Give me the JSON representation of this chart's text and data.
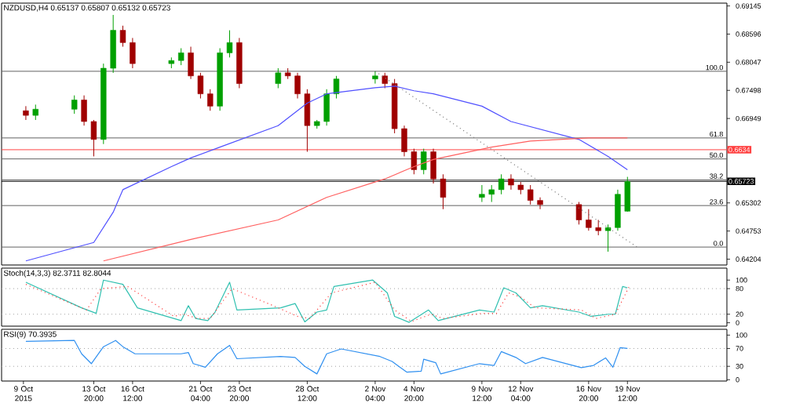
{
  "chart_data": [
    {
      "type": "candlestick",
      "title": "NZDUSD,H4 0.65137 0.65807 0.65132 0.65723",
      "tick_labels": "y",
      "xlim": [
        "2015-10-07T12:00",
        "2015-11-26T08:00"
      ],
      "ylim": [
        0.6409,
        0.692
      ],
      "yticks": [
        0.69145,
        0.68596,
        0.68047,
        0.67498,
        0.66949,
        0.65302,
        0.64753,
        0.64204
      ],
      "x": [
        "2015-10-09T04:00",
        "2015-10-09T20:00",
        "2015-10-12T12:00",
        "2015-10-13T04:00",
        "2015-10-13T20:00",
        "2015-10-14T12:00",
        "2015-10-15T04:00",
        "2015-10-15T20:00",
        "2015-10-16T12:00",
        "2015-10-19T04:00",
        "2015-10-19T20:00",
        "2015-10-20T12:00",
        "2015-10-21T04:00",
        "2015-10-21T20:00",
        "2015-10-22T12:00",
        "2015-10-23T04:00",
        "2015-10-23T20:00",
        "2015-10-26T12:00",
        "2015-10-27T04:00",
        "2015-10-27T20:00",
        "2015-10-28T12:00",
        "2015-10-29T04:00",
        "2015-10-29T20:00",
        "2015-10-30T12:00",
        "2015-11-02T04:00",
        "2015-11-02T20:00",
        "2015-11-03T12:00",
        "2015-11-04T04:00",
        "2015-11-04T20:00",
        "2015-11-05T12:00",
        "2015-11-06T04:00",
        "2015-11-06T20:00",
        "2015-11-09T12:00",
        "2015-11-10T04:00",
        "2015-11-10T20:00",
        "2015-11-11T12:00",
        "2015-11-12T04:00",
        "2015-11-12T20:00",
        "2015-11-13T12:00",
        "2015-11-16T04:00",
        "2015-11-16T20:00",
        "2015-11-17T12:00",
        "2015-11-18T04:00",
        "2015-11-18T20:00",
        "2015-11-19T12:00"
      ],
      "ohlc": [
        [
          0.671,
          0.6719,
          0.6692,
          0.6701
        ],
        [
          0.6701,
          0.6722,
          0.6692,
          0.6713
        ],
        [
          0.6713,
          0.674,
          0.6704,
          0.6731
        ],
        [
          0.6731,
          0.674,
          0.6681,
          0.6689
        ],
        [
          0.6689,
          0.6692,
          0.6621,
          0.6654
        ],
        [
          0.6654,
          0.6802,
          0.6645,
          0.6793
        ],
        [
          0.6793,
          0.6897,
          0.6784,
          0.6867
        ],
        [
          0.6867,
          0.6876,
          0.6835,
          0.6843
        ],
        [
          0.6843,
          0.6852,
          0.6793,
          0.6802
        ],
        [
          0.6802,
          0.6814,
          0.6793,
          0.6808
        ],
        [
          0.6808,
          0.6832,
          0.6799,
          0.6823
        ],
        [
          0.6823,
          0.6835,
          0.6772,
          0.6778
        ],
        [
          0.6778,
          0.6784,
          0.6734,
          0.6743
        ],
        [
          0.6743,
          0.6752,
          0.671,
          0.6719
        ],
        [
          0.6719,
          0.6832,
          0.671,
          0.6823
        ],
        [
          0.6823,
          0.6867,
          0.6814,
          0.6843
        ],
        [
          0.6843,
          0.6852,
          0.6754,
          0.6763
        ],
        [
          0.6763,
          0.6793,
          0.6754,
          0.6784
        ],
        [
          0.6784,
          0.6793,
          0.6772,
          0.6778
        ],
        [
          0.6778,
          0.6784,
          0.6734,
          0.6743
        ],
        [
          0.6743,
          0.6752,
          0.663,
          0.6681
        ],
        [
          0.6681,
          0.6692,
          0.6675,
          0.6689
        ],
        [
          0.6689,
          0.6752,
          0.6681,
          0.6743
        ],
        [
          0.6743,
          0.6778,
          0.6734,
          0.6772
        ],
        [
          0.6772,
          0.6787,
          0.6763,
          0.6778
        ],
        [
          0.6778,
          0.6784,
          0.6754,
          0.6763
        ],
        [
          0.6763,
          0.6772,
          0.6666,
          0.6675
        ],
        [
          0.6675,
          0.6681,
          0.6621,
          0.663
        ],
        [
          0.663,
          0.6636,
          0.6586,
          0.6595
        ],
        [
          0.6595,
          0.6636,
          0.6586,
          0.663
        ],
        [
          0.663,
          0.6636,
          0.6568,
          0.6577
        ],
        [
          0.6577,
          0.6586,
          0.6518,
          0.6541
        ],
        [
          0.6541,
          0.6565,
          0.6532,
          0.6547
        ],
        [
          0.6547,
          0.6565,
          0.6532,
          0.6556
        ],
        [
          0.6556,
          0.6586,
          0.6547,
          0.6577
        ],
        [
          0.6577,
          0.6586,
          0.6556,
          0.6565
        ],
        [
          0.6565,
          0.6571,
          0.6547,
          0.6556
        ],
        [
          0.6556,
          0.6565,
          0.6527,
          0.6535
        ],
        [
          0.6535,
          0.6541,
          0.6518,
          0.6527
        ],
        [
          0.6527,
          0.6532,
          0.6488,
          0.6497
        ],
        [
          0.6497,
          0.6518,
          0.6476,
          0.6482
        ],
        [
          0.6482,
          0.6497,
          0.6467,
          0.6476
        ],
        [
          0.6476,
          0.6488,
          0.6435,
          0.6482
        ],
        [
          0.6482,
          0.6556,
          0.6476,
          0.6547
        ],
        [
          0.6514,
          0.6581,
          0.6513,
          0.6572
        ]
      ],
      "colors": [
        "#a00000",
        "#00a000",
        "#00a000",
        "#a00000",
        "#a00000",
        "#00a000",
        "#00a000",
        "#a00000",
        "#a00000",
        "#00a000",
        "#00a000",
        "#a00000",
        "#a00000",
        "#a00000",
        "#00a000",
        "#00a000",
        "#a00000",
        "#00a000",
        "#a00000",
        "#a00000",
        "#a00000",
        "#00a000",
        "#00a000",
        "#00a000",
        "#00a000",
        "#a00000",
        "#a00000",
        "#a00000",
        "#a00000",
        "#00a000",
        "#a00000",
        "#a00000",
        "#00a000",
        "#00a000",
        "#00a000",
        "#a00000",
        "#a00000",
        "#a00000",
        "#a00000",
        "#a00000",
        "#a00000",
        "#a00000",
        "#00a000",
        "#00a000",
        "#00a000"
      ],
      "series": [
        {
          "type": "line",
          "color": "#5050ff",
          "x": [
            "2015-10-09T04:00",
            "2015-10-13T20:00",
            "2015-10-15T04:00",
            "2015-10-15T20:00",
            "2015-10-19T04:00",
            "2015-10-20T12:00",
            "2015-10-22T12:00",
            "2015-10-26T12:00",
            "2015-10-28T12:00",
            "2015-10-29T20:00",
            "2015-11-02T04:00",
            "2015-11-03T12:00",
            "2015-11-04T20:00",
            "2015-11-06T04:00",
            "2015-11-09T12:00",
            "2015-11-11T12:00",
            "2015-11-16T04:00",
            "2015-11-18T04:00",
            "2015-11-19T12:00"
          ],
          "values": [
            0.6417,
            0.6453,
            0.6512,
            0.6556,
            0.6601,
            0.6618,
            0.6639,
            0.6681,
            0.6725,
            0.6743,
            0.6755,
            0.6758,
            0.6749,
            0.6743,
            0.6719,
            0.6689,
            0.6654,
            0.6621,
            0.6595
          ]
        },
        {
          "type": "line",
          "color": "#ff6060",
          "x": [
            "2015-10-14T12:00",
            "2015-10-20T12:00",
            "2015-10-26T12:00",
            "2015-10-29T20:00",
            "2015-11-02T20:00",
            "2015-11-04T20:00",
            "2015-11-06T04:00",
            "2015-11-10T04:00",
            "2015-11-12T20:00",
            "2015-11-16T20:00",
            "2015-11-19T12:00"
          ],
          "values": [
            0.6417,
            0.6459,
            0.6497,
            0.6541,
            0.6577,
            0.6601,
            0.6615,
            0.6639,
            0.6651,
            0.6657,
            0.6657
          ]
        },
        {
          "type": "line",
          "color": "#808080",
          "line_style": "dotted",
          "x": [
            "2015-11-02T04:00",
            "2015-11-20T04:00"
          ],
          "values": [
            0.6787,
            0.6444
          ]
        }
      ],
      "ref_lines": [
        {
          "axis": "y",
          "value": 0.6787,
          "color": "#606060"
        },
        {
          "axis": "y",
          "value": 0.6657,
          "color": "#606060"
        },
        {
          "axis": "y",
          "value": 0.6616,
          "color": "#606060"
        },
        {
          "axis": "y",
          "value": 0.6575,
          "color": "#606060"
        },
        {
          "axis": "y",
          "value": 0.6525,
          "color": "#606060"
        },
        {
          "axis": "y",
          "value": 0.6444,
          "color": "#606060"
        },
        {
          "axis": "y",
          "value": 0.6634,
          "color": "#ff4040",
          "label": "0.6634"
        },
        {
          "axis": "y",
          "value": 0.65723,
          "color": "#000000",
          "label": "0.65723"
        }
      ],
      "annotations": [
        {
          "text": "100.0",
          "x": "2015-11-26T04:00",
          "y": 0.6787
        },
        {
          "text": "61.8",
          "x": "2015-11-26T04:00",
          "y": 0.6657
        },
        {
          "text": "50.0",
          "x": "2015-11-26T04:00",
          "y": 0.6616
        },
        {
          "text": "38.2",
          "x": "2015-11-26T04:00",
          "y": 0.6575
        },
        {
          "text": "23.6",
          "x": "2015-11-26T04:00",
          "y": 0.6525
        },
        {
          "text": "0.0",
          "x": "2015-11-26T04:00",
          "y": 0.6444
        }
      ]
    },
    {
      "type": "line",
      "title": "Stoch(14,3,3) 82.3711 82.8044",
      "tick_labels": "y",
      "xlim": [
        "2015-10-07T12:00",
        "2015-11-26T08:00"
      ],
      "ylim": [
        -8,
        128
      ],
      "yticks": [
        0,
        20,
        80,
        100
      ],
      "ref_lines": [
        {
          "axis": "y",
          "value": 20,
          "color": "#a0a0a0",
          "line_style": "dotted"
        },
        {
          "axis": "y",
          "value": 80,
          "color": "#a0a0a0",
          "line_style": "dotted"
        }
      ],
      "series": [
        {
          "color": "#30c0b0",
          "x": [
            "2015-10-09T04:00",
            "2015-10-13T00:00",
            "2015-10-14T00:00",
            "2015-10-14T12:00",
            "2015-10-15T20:00",
            "2015-10-16T20:00",
            "2015-10-19T20:00",
            "2015-10-20T08:00",
            "2015-10-20T20:00",
            "2015-10-21T16:00",
            "2015-10-22T04:00",
            "2015-10-23T04:00",
            "2015-10-23T16:00",
            "2015-10-26T16:00",
            "2015-10-27T16:00",
            "2015-10-28T08:00",
            "2015-10-29T04:00",
            "2015-10-29T20:00",
            "2015-10-30T08:00",
            "2015-11-02T00:00",
            "2015-11-03T00:00",
            "2015-11-03T12:00",
            "2015-11-04T12:00",
            "2015-11-05T20:00",
            "2015-11-06T12:00",
            "2015-11-09T08:00",
            "2015-11-10T08:00",
            "2015-11-11T00:00",
            "2015-11-11T20:00",
            "2015-11-12T20:00",
            "2015-11-13T16:00",
            "2015-11-16T04:00",
            "2015-11-17T00:00",
            "2015-11-18T04:00",
            "2015-11-18T16:00",
            "2015-11-19T04:00",
            "2015-11-19T12:00"
          ],
          "values": [
            95,
            35,
            22,
            100,
            90,
            35,
            5,
            40,
            10,
            5,
            25,
            95,
            30,
            35,
            45,
            2,
            25,
            30,
            85,
            100,
            70,
            15,
            1,
            30,
            5,
            30,
            25,
            82,
            70,
            35,
            40,
            25,
            15,
            20,
            20,
            85,
            82
          ]
        },
        {
          "color": "#ff4040",
          "line_style": "dotted",
          "x": [
            "2015-10-09T04:00",
            "2015-10-13T08:00",
            "2015-10-14T08:00",
            "2015-10-16T04:00",
            "2015-10-19T08:00",
            "2015-10-20T00:00",
            "2015-10-21T00:00",
            "2015-10-21T20:00",
            "2015-10-23T08:00",
            "2015-10-26T04:00",
            "2015-10-27T20:00",
            "2015-10-28T16:00",
            "2015-10-30T04:00",
            "2015-11-02T04:00",
            "2015-11-03T12:00",
            "2015-11-04T16:00",
            "2015-11-06T00:00",
            "2015-11-06T20:00",
            "2015-11-09T12:00",
            "2015-11-10T12:00",
            "2015-11-11T08:00",
            "2015-11-12T04:00",
            "2015-11-13T04:00",
            "2015-11-16T08:00",
            "2015-11-17T08:00",
            "2015-11-18T16:00",
            "2015-11-19T16:00"
          ],
          "values": [
            90,
            30,
            80,
            85,
            15,
            20,
            10,
            10,
            80,
            40,
            15,
            10,
            70,
            95,
            30,
            3,
            20,
            10,
            22,
            22,
            70,
            60,
            35,
            30,
            10,
            20,
            88
          ]
        }
      ]
    },
    {
      "type": "line",
      "title": "RSI(9) 70.3935",
      "xlim": [
        "2015-10-07T12:00",
        "2015-11-26T08:00"
      ],
      "ylim": [
        -3,
        113
      ],
      "yticks": [
        0,
        30,
        70,
        100
      ],
      "xticks": [
        {
          "value": "2015-10-09",
          "label": "9 Oct 2015"
        },
        {
          "value": "2015-10-13T20:00",
          "label": "13 Oct 20:00"
        },
        {
          "value": "2015-10-16T12:00",
          "label": "16 Oct 12:00"
        },
        {
          "value": "2015-10-21T04:00",
          "label": "21 Oct 04:00"
        },
        {
          "value": "2015-10-23T20:00",
          "label": "23 Oct 20:00"
        },
        {
          "value": "2015-10-28T12:00",
          "label": "28 Oct 12:00"
        },
        {
          "value": "2015-11-02T04:00",
          "label": "2 Nov 04:00"
        },
        {
          "value": "2015-11-04T20:00",
          "label": "4 Nov 20:00"
        },
        {
          "value": "2015-11-09T12:00",
          "label": "9 Nov 12:00"
        },
        {
          "value": "2015-11-12T04:00",
          "label": "12 Nov 04:00"
        },
        {
          "value": "2015-11-16T20:00",
          "label": "16 Nov 20:00"
        },
        {
          "value": "2015-11-19T12:00",
          "label": "19 Nov 12:00"
        }
      ],
      "ref_lines": [
        {
          "axis": "y",
          "value": 30,
          "color": "#a0a0a0",
          "line_style": "dotted"
        },
        {
          "axis": "y",
          "value": 70,
          "color": "#a0a0a0",
          "line_style": "dotted"
        }
      ],
      "series": [
        {
          "color": "#3090f0",
          "x": [
            "2015-10-09T04:00",
            "2015-10-12T12:00",
            "2015-10-13T00:00",
            "2015-10-13T16:00",
            "2015-10-14T12:00",
            "2015-10-15T08:00",
            "2015-10-15T20:00",
            "2015-10-16T16:00",
            "2015-10-19T20:00",
            "2015-10-20T08:00",
            "2015-10-20T16:00",
            "2015-10-21T12:00",
            "2015-10-22T08:00",
            "2015-10-23T04:00",
            "2015-10-23T16:00",
            "2015-10-26T16:00",
            "2015-10-27T16:00",
            "2015-10-28T08:00",
            "2015-10-29T04:00",
            "2015-10-29T20:00",
            "2015-10-30T20:00",
            "2015-11-02T12:00",
            "2015-11-03T08:00",
            "2015-11-04T08:00",
            "2015-11-05T08:00",
            "2015-11-05T12:00",
            "2015-11-06T08:00",
            "2015-11-06T16:00",
            "2015-11-09T08:00",
            "2015-11-10T08:00",
            "2015-11-10T20:00",
            "2015-11-11T20:00",
            "2015-11-12T12:00",
            "2015-11-13T16:00",
            "2015-11-16T08:00",
            "2015-11-17T04:00",
            "2015-11-18T00:00",
            "2015-11-18T12:00",
            "2015-11-19T00:00",
            "2015-11-19T12:00"
          ],
          "values": [
            86,
            88,
            58,
            36,
            74,
            88,
            74,
            58,
            58,
            61,
            36,
            28,
            58,
            77,
            47,
            52,
            50,
            30,
            13,
            58,
            69,
            52,
            41,
            17,
            19,
            46,
            38,
            13,
            36,
            32,
            63,
            50,
            36,
            50,
            27,
            32,
            49,
            28,
            72,
            70
          ]
        }
      ]
    }
  ]
}
